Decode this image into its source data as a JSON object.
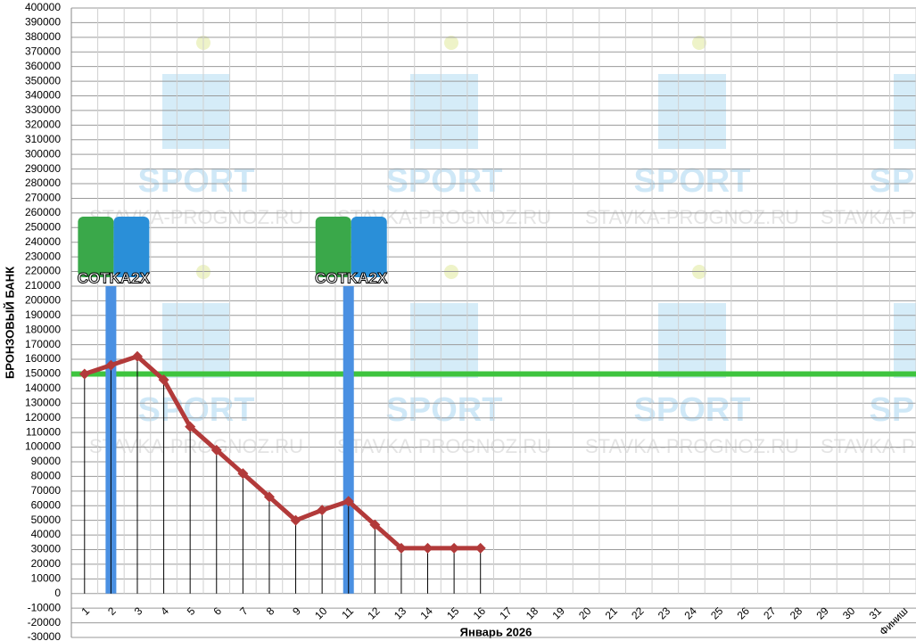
{
  "chart_data": {
    "type": "line",
    "x_label": "Январь 2026",
    "y_label": "БРОНЗОВЫЙ БАНК",
    "categories": [
      "1",
      "2",
      "3",
      "4",
      "5",
      "6",
      "7",
      "8",
      "9",
      "10",
      "11",
      "12",
      "13",
      "14",
      "15",
      "16",
      "17",
      "18",
      "19",
      "20",
      "21",
      "22",
      "23",
      "24",
      "25",
      "26",
      "27",
      "28",
      "29",
      "30",
      "31",
      "Финиш"
    ],
    "series": [
      {
        "color": "#b23a3a",
        "values": [
          150000,
          156000,
          162000,
          146000,
          114000,
          98000,
          82000,
          66000,
          50000,
          57000,
          63000,
          47000,
          31000,
          31000,
          31000,
          31000,
          null,
          null,
          null,
          null,
          null,
          null,
          null,
          null,
          null,
          null,
          null,
          null,
          null,
          null,
          null,
          null
        ]
      }
    ],
    "drop_lines": true,
    "reference_line": {
      "value": 150000,
      "color": "#3ec43e"
    },
    "events": [
      {
        "category": "2",
        "value": 210000,
        "label": "COTKA2X",
        "color": "#4a90e2"
      },
      {
        "category": "11",
        "value": 210000,
        "label": "COTKA2X",
        "color": "#4a90e2"
      }
    ],
    "watermark": [
      "SPORT",
      "STAVKA-PROGNOZ.RU"
    ],
    "ylim": [
      -30000,
      400000
    ],
    "yticks": [
      -30000,
      -20000,
      -10000,
      0,
      10000,
      20000,
      30000,
      40000,
      50000,
      60000,
      70000,
      80000,
      90000,
      100000,
      110000,
      120000,
      130000,
      140000,
      150000,
      160000,
      170000,
      180000,
      190000,
      200000,
      210000,
      220000,
      230000,
      240000,
      250000,
      260000,
      270000,
      280000,
      290000,
      300000,
      310000,
      320000,
      330000,
      340000,
      350000,
      360000,
      370000,
      380000,
      390000,
      400000
    ],
    "grid": true
  }
}
